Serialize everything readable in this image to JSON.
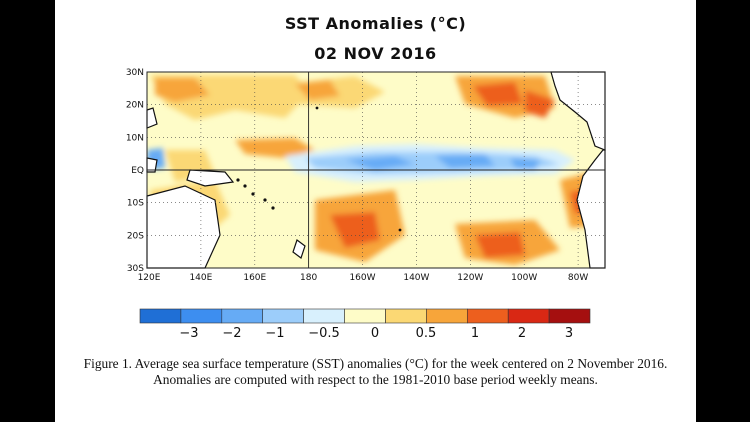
{
  "figure": {
    "title": "SST Anomalies (°C)",
    "date": "02 NOV 2016",
    "caption": "Figure 1. Average sea surface temperature (SST) anomalies (°C) for the week centered on 2 November 2016.  Anomalies are computed with respect to the 1981-2010 base period weekly means."
  },
  "map": {
    "lat_labels": [
      "30N",
      "20N",
      "10N",
      "EQ",
      "10S",
      "20S",
      "30S"
    ],
    "lon_labels": [
      "120E",
      "140E",
      "160E",
      "180",
      "160W",
      "140W",
      "120W",
      "100W",
      "80W"
    ],
    "lat_range": [
      -30,
      30
    ],
    "lon_range": [
      120,
      290
    ],
    "gridlines": "dotted",
    "emphasized_lines": [
      "equator",
      "dateline"
    ]
  },
  "colorbar": {
    "tick_labels": [
      "−3",
      "−2",
      "−1",
      "−0.5",
      "0",
      "0.5",
      "1",
      "2",
      "3"
    ],
    "colors": [
      "#1f6fd6",
      "#3d8ef0",
      "#66abf5",
      "#9ccdfa",
      "#d8f0fd",
      "#fefcc8",
      "#fbd874",
      "#f7a53a",
      "#ed5f1e",
      "#d92814",
      "#a50f0f"
    ]
  },
  "colors": {
    "page_background": "#000000",
    "panel_background": "#ffffff",
    "land": "#ffffff",
    "coast": "#111111"
  }
}
